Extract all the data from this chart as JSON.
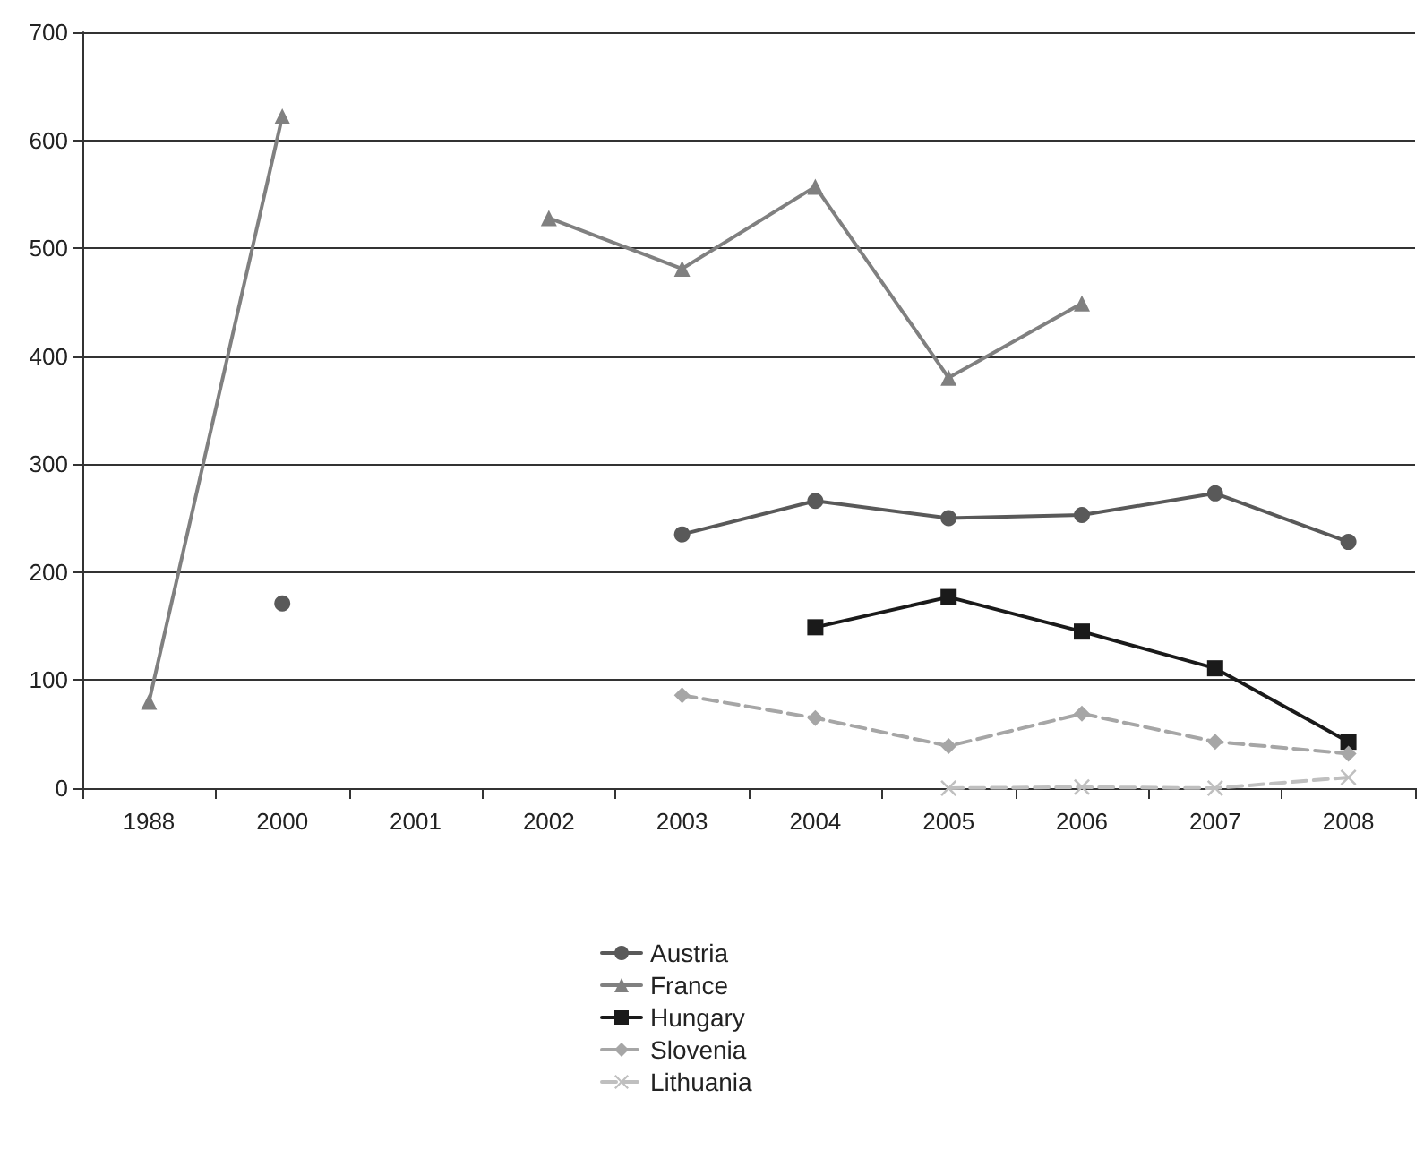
{
  "chart_data": {
    "type": "line",
    "categories": [
      "1988",
      "2000",
      "2001",
      "2002",
      "2003",
      "2004",
      "2005",
      "2006",
      "2007",
      "2008"
    ],
    "ylim": [
      0,
      700
    ],
    "yticks": [
      0,
      100,
      200,
      300,
      400,
      500,
      600,
      700
    ],
    "grid": "y",
    "legend": "bottom",
    "series": [
      {
        "name": "Austria",
        "color": "#595959",
        "marker": "circle",
        "line_style": "solid",
        "values": [
          null,
          171,
          null,
          null,
          235,
          266,
          250,
          253,
          273,
          228
        ]
      },
      {
        "name": "France",
        "color": "#808080",
        "marker": "triangle",
        "line_style": "solid",
        "values": [
          80,
          622,
          null,
          528,
          481,
          557,
          380,
          449,
          null,
          null
        ]
      },
      {
        "name": "Hungary",
        "color": "#1a1a1a",
        "marker": "square",
        "line_style": "solid",
        "values": [
          null,
          null,
          null,
          null,
          null,
          149,
          177,
          145,
          111,
          43
        ]
      },
      {
        "name": "Slovenia",
        "color": "#a6a6a6",
        "marker": "diamond",
        "line_style": "dashed",
        "values": [
          null,
          null,
          null,
          null,
          86,
          65,
          39,
          69,
          43,
          32
        ]
      },
      {
        "name": "Lithuania",
        "color": "#bfbfbf",
        "marker": "cross",
        "line_style": "dashed",
        "values": [
          null,
          null,
          null,
          null,
          null,
          null,
          0,
          1,
          0,
          10
        ]
      }
    ]
  }
}
